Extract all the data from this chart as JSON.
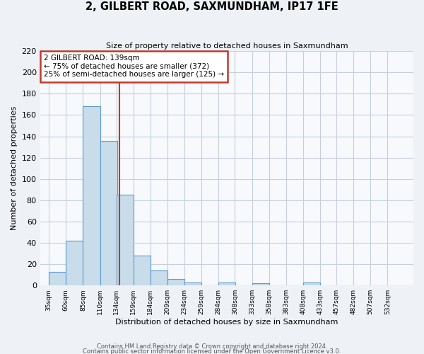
{
  "title": "2, GILBERT ROAD, SAXMUNDHAM, IP17 1FE",
  "subtitle": "Size of property relative to detached houses in Saxmundham",
  "xlabel": "Distribution of detached houses by size in Saxmundham",
  "ylabel": "Number of detached properties",
  "bar_values": [
    13,
    42,
    168,
    136,
    85,
    28,
    14,
    6,
    3,
    0,
    3,
    0,
    2,
    0,
    0,
    3
  ],
  "bar_labels": [
    "35sqm",
    "60sqm",
    "85sqm",
    "110sqm",
    "134sqm",
    "159sqm",
    "184sqm",
    "209sqm",
    "234sqm",
    "259sqm",
    "284sqm",
    "308sqm",
    "333sqm",
    "358sqm",
    "383sqm",
    "408sqm",
    "433sqm",
    "457sqm",
    "482sqm",
    "507sqm",
    "532sqm"
  ],
  "bin_width": 25,
  "bar_starts": [
    35,
    60,
    85,
    110,
    134,
    159,
    184,
    209,
    234,
    259,
    284,
    308,
    333,
    358,
    383,
    408
  ],
  "bar_color": "#c8dcea",
  "bar_edge_color": "#5b9bd5",
  "vline_x": 139,
  "vline_color": "#c0392b",
  "ylim_max": 220,
  "yticks": [
    0,
    20,
    40,
    60,
    80,
    100,
    120,
    140,
    160,
    180,
    200,
    220
  ],
  "annotation_title": "2 GILBERT ROAD: 139sqm",
  "annotation_line1": "← 75% of detached houses are smaller (372)",
  "annotation_line2": "25% of semi-detached houses are larger (125) →",
  "annotation_box_color": "#c0392b",
  "footer_line1": "Contains HM Land Registry data © Crown copyright and database right 2024.",
  "footer_line2": "Contains public sector information licensed under the Open Government Licence v3.0.",
  "bg_color": "#eef2f7",
  "plot_bg_color": "#f7f9fc",
  "grid_color": "#c5d0dc"
}
